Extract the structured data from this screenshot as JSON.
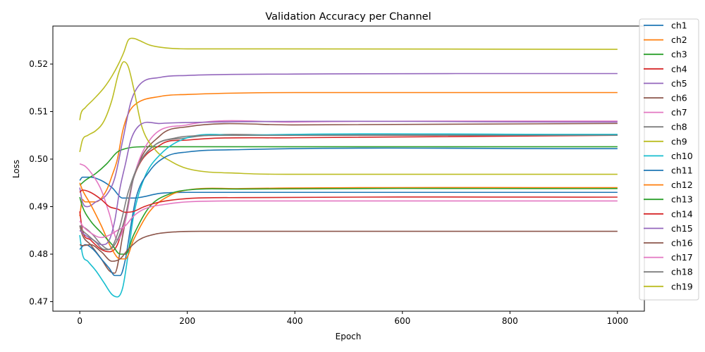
{
  "chart_data": {
    "type": "line",
    "title": "Validation Accuracy per Channel",
    "xlabel": "Epoch",
    "ylabel": "Loss",
    "xlim": [
      -50,
      1050
    ],
    "ylim": [
      0.468,
      0.528
    ],
    "xticks": [
      0,
      200,
      400,
      600,
      800,
      1000
    ],
    "yticks": [
      0.47,
      0.48,
      0.49,
      0.5,
      0.51,
      0.52
    ],
    "ytick_labels": [
      "0.47",
      "0.48",
      "0.49",
      "0.50",
      "0.51",
      "0.52"
    ],
    "grid": false,
    "legend_position": "outside-right",
    "series": [
      {
        "name": "ch1",
        "color": "#1f77b4",
        "x": [
          0,
          5,
          20,
          40,
          60,
          80,
          100,
          150,
          200,
          300,
          1000
        ],
        "y": [
          0.4955,
          0.4962,
          0.4962,
          0.4955,
          0.494,
          0.4918,
          0.4918,
          0.4928,
          0.493,
          0.493,
          0.493
        ]
      },
      {
        "name": "ch2",
        "color": "#ff7f0e",
        "x": [
          0,
          5,
          10,
          30,
          50,
          60,
          70,
          80,
          90,
          100,
          150,
          200,
          400,
          1000
        ],
        "y": [
          0.488,
          0.4915,
          0.491,
          0.491,
          0.4935,
          0.4965,
          0.5,
          0.506,
          0.5095,
          0.5112,
          0.5132,
          0.5136,
          0.514,
          0.514
        ]
      },
      {
        "name": "ch3",
        "color": "#2ca02c",
        "x": [
          0,
          10,
          30,
          50,
          70,
          85,
          100,
          150,
          1000
        ],
        "y": [
          0.4945,
          0.4955,
          0.497,
          0.499,
          0.5015,
          0.5022,
          0.5025,
          0.5026,
          0.5026
        ]
      },
      {
        "name": "ch4",
        "color": "#d62728",
        "x": [
          0,
          5,
          20,
          40,
          55,
          70,
          85,
          100,
          150,
          200,
          400,
          1000
        ],
        "y": [
          0.489,
          0.485,
          0.483,
          0.481,
          0.4805,
          0.482,
          0.488,
          0.496,
          0.503,
          0.504,
          0.5045,
          0.505
        ]
      },
      {
        "name": "ch5",
        "color": "#9467bd",
        "x": [
          0,
          5,
          15,
          30,
          50,
          65,
          80,
          95,
          110,
          150,
          200,
          400,
          1000
        ],
        "y": [
          0.494,
          0.491,
          0.49,
          0.491,
          0.4925,
          0.496,
          0.504,
          0.512,
          0.5155,
          0.5172,
          0.5176,
          0.5179,
          0.518
        ]
      },
      {
        "name": "ch6",
        "color": "#8c564b",
        "x": [
          0,
          5,
          20,
          40,
          55,
          65,
          80,
          100,
          150,
          200,
          400,
          1000
        ],
        "y": [
          0.486,
          0.484,
          0.482,
          0.479,
          0.4765,
          0.476,
          0.484,
          0.496,
          0.505,
          0.5068,
          0.5072,
          0.5075
        ]
      },
      {
        "name": "ch7",
        "color": "#e377c2",
        "x": [
          0,
          10,
          25,
          40,
          55,
          70,
          85,
          100,
          130,
          200,
          400,
          1000
        ],
        "y": [
          0.499,
          0.4985,
          0.4965,
          0.4935,
          0.4885,
          0.483,
          0.487,
          0.496,
          0.504,
          0.5072,
          0.5078,
          0.508
        ]
      },
      {
        "name": "ch8",
        "color": "#7f7f7f",
        "x": [
          0,
          10,
          25,
          40,
          55,
          70,
          85,
          100,
          130,
          200,
          400,
          1000
        ],
        "y": [
          0.486,
          0.4855,
          0.484,
          0.482,
          0.481,
          0.483,
          0.488,
          0.496,
          0.502,
          0.5045,
          0.505,
          0.5052
        ]
      },
      {
        "name": "ch9",
        "color": "#bcbd22",
        "x": [
          0,
          5,
          15,
          30,
          45,
          60,
          72,
          82,
          90,
          100,
          115,
          140,
          170,
          200,
          300,
          400,
          1000
        ],
        "y": [
          0.5015,
          0.504,
          0.505,
          0.506,
          0.508,
          0.5125,
          0.518,
          0.5205,
          0.5195,
          0.515,
          0.507,
          0.502,
          0.4995,
          0.498,
          0.497,
          0.4968,
          0.4968
        ]
      },
      {
        "name": "ch10",
        "color": "#17becf",
        "x": [
          0,
          5,
          15,
          30,
          45,
          60,
          70,
          80,
          90,
          100,
          120,
          150,
          200,
          300,
          1000
        ],
        "y": [
          0.484,
          0.48,
          0.4785,
          0.4765,
          0.474,
          0.4715,
          0.471,
          0.473,
          0.48,
          0.488,
          0.496,
          0.501,
          0.5045,
          0.505,
          0.5052
        ]
      },
      {
        "name": "ch11",
        "color": "#1f77b4",
        "x": [
          0,
          10,
          25,
          40,
          55,
          65,
          75,
          85,
          95,
          105,
          130,
          160,
          200,
          300,
          1000
        ],
        "y": [
          0.481,
          0.482,
          0.481,
          0.479,
          0.477,
          0.4755,
          0.4755,
          0.479,
          0.486,
          0.492,
          0.4975,
          0.5005,
          0.5015,
          0.502,
          0.5022
        ]
      },
      {
        "name": "ch12",
        "color": "#ff7f0e",
        "x": [
          0,
          5,
          20,
          40,
          60,
          75,
          85,
          100,
          130,
          170,
          200,
          300,
          1000
        ],
        "y": [
          0.495,
          0.4935,
          0.4905,
          0.486,
          0.481,
          0.479,
          0.479,
          0.483,
          0.489,
          0.4925,
          0.4935,
          0.4938,
          0.494
        ]
      },
      {
        "name": "ch13",
        "color": "#2ca02c",
        "x": [
          0,
          5,
          20,
          40,
          60,
          75,
          85,
          100,
          130,
          170,
          200,
          300,
          1000
        ],
        "y": [
          0.492,
          0.49,
          0.487,
          0.4845,
          0.482,
          0.48,
          0.48,
          0.484,
          0.49,
          0.4928,
          0.4935,
          0.4937,
          0.4938
        ]
      },
      {
        "name": "ch14",
        "color": "#d62728",
        "x": [
          0,
          5,
          20,
          40,
          55,
          70,
          85,
          100,
          120,
          150,
          200,
          300,
          1000
        ],
        "y": [
          0.493,
          0.4935,
          0.493,
          0.4915,
          0.49,
          0.4895,
          0.4888,
          0.489,
          0.49,
          0.491,
          0.4917,
          0.4919,
          0.492
        ]
      },
      {
        "name": "ch15",
        "color": "#9467bd",
        "x": [
          0,
          10,
          25,
          40,
          55,
          65,
          75,
          85,
          95,
          110,
          150,
          200,
          1000
        ],
        "y": [
          0.485,
          0.484,
          0.483,
          0.482,
          0.483,
          0.487,
          0.494,
          0.499,
          0.504,
          0.507,
          0.5075,
          0.5077,
          0.5078
        ]
      },
      {
        "name": "ch16",
        "color": "#8c564b",
        "x": [
          0,
          5,
          20,
          40,
          60,
          75,
          90,
          110,
          140,
          180,
          250,
          1000
        ],
        "y": [
          0.482,
          0.4818,
          0.482,
          0.4805,
          0.4785,
          0.479,
          0.481,
          0.483,
          0.4842,
          0.4847,
          0.4848,
          0.4848
        ]
      },
      {
        "name": "ch17",
        "color": "#e377c2",
        "x": [
          0,
          5,
          20,
          40,
          55,
          70,
          85,
          100,
          120,
          160,
          200,
          300,
          1000
        ],
        "y": [
          0.487,
          0.486,
          0.4845,
          0.4835,
          0.484,
          0.485,
          0.486,
          0.488,
          0.4895,
          0.4905,
          0.491,
          0.4912,
          0.4912
        ]
      },
      {
        "name": "ch18",
        "color": "#7f7f7f",
        "x": [
          0,
          5,
          15,
          30,
          45,
          60,
          75,
          90,
          110,
          140,
          180,
          200,
          300,
          1000
        ],
        "y": [
          0.486,
          0.485,
          0.484,
          0.4825,
          0.481,
          0.4815,
          0.486,
          0.493,
          0.499,
          0.503,
          0.5045,
          0.5048,
          0.505,
          0.505
        ]
      },
      {
        "name": "ch19",
        "color": "#bcbd22",
        "x": [
          0,
          2,
          10,
          25,
          45,
          60,
          72,
          82,
          90,
          100,
          110,
          130,
          160,
          200,
          300,
          1000
        ],
        "y": [
          0.5082,
          0.5095,
          0.5108,
          0.5125,
          0.515,
          0.5175,
          0.52,
          0.5225,
          0.525,
          0.5254,
          0.525,
          0.524,
          0.5234,
          0.5232,
          0.5232,
          0.5231
        ]
      }
    ]
  }
}
